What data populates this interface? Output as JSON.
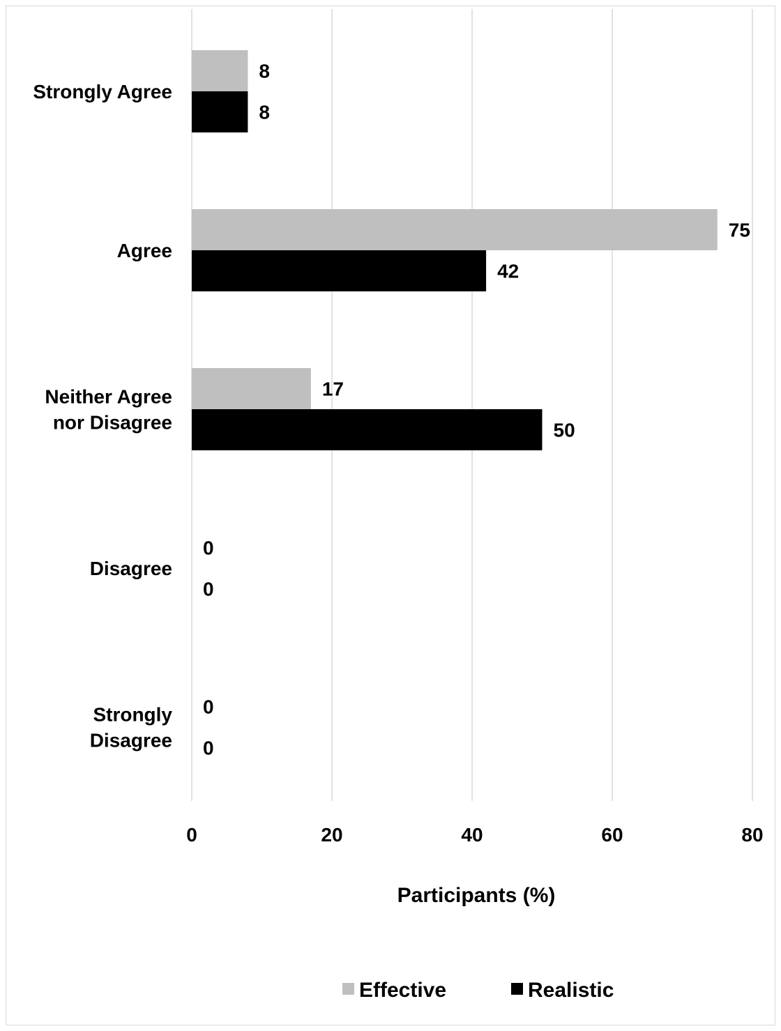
{
  "chart_data": {
    "type": "bar",
    "orientation": "horizontal",
    "categories": [
      [
        "Strongly Agree"
      ],
      [
        "Agree"
      ],
      [
        "Neither Agree",
        "nor Disagree"
      ],
      [
        "Disagree"
      ],
      [
        "Strongly",
        "Disagree"
      ]
    ],
    "series": [
      {
        "name": "Effective",
        "values": [
          8,
          75,
          17,
          0,
          0
        ],
        "color": "#bfbfbf"
      },
      {
        "name": "Realistic",
        "values": [
          8,
          42,
          50,
          0,
          0
        ],
        "color": "#000000"
      }
    ],
    "xlabel": "Participants (%)",
    "xlim": [
      0,
      80
    ],
    "xticks": [
      0,
      20,
      40,
      60,
      80
    ],
    "grid": "vertical",
    "gridColor": "#d9d9d9",
    "legend": "bottom"
  }
}
